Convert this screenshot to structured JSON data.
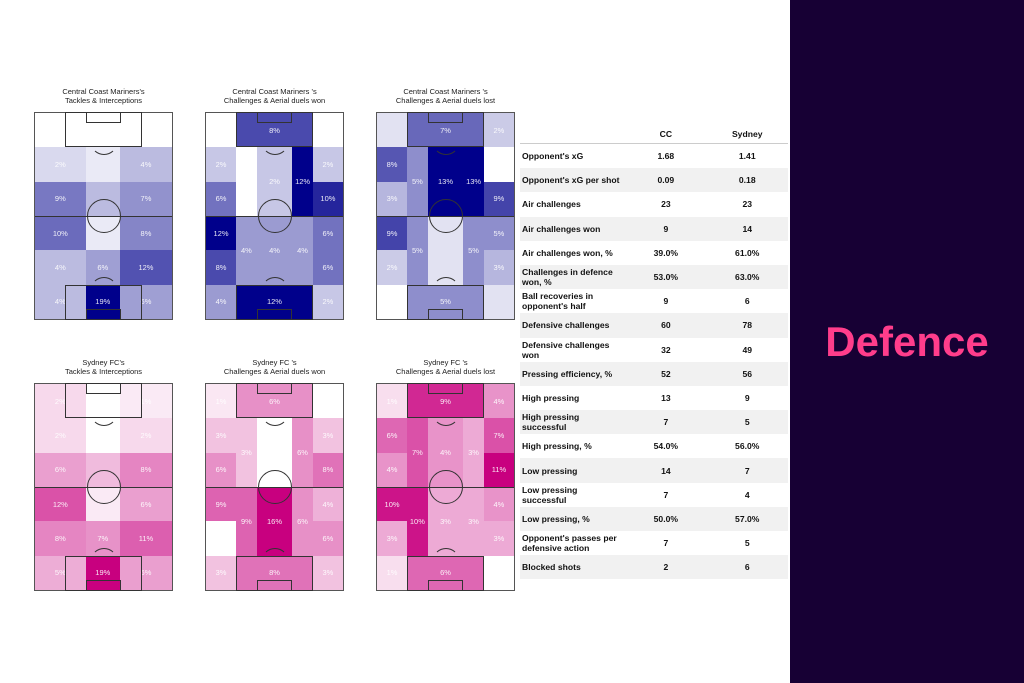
{
  "chart_data": [
    {
      "type": "heatmap",
      "team": "cc",
      "title": "Central Coast Mariners's\nTackles & Interceptions",
      "layout": "3col",
      "cells": [
        [
          0,
          2,
          0,
          1,
          0,
          "0%"
        ],
        [
          2,
          3,
          0,
          1,
          0,
          "0%"
        ],
        [
          3,
          5,
          0,
          1,
          0,
          "0%"
        ],
        [
          0,
          2,
          1,
          2,
          2,
          "2%"
        ],
        [
          2,
          3,
          1,
          2,
          1,
          ""
        ],
        [
          3,
          5,
          1,
          2,
          4,
          "4%"
        ],
        [
          0,
          2,
          2,
          3,
          9,
          "9%"
        ],
        [
          2,
          3,
          2,
          3,
          4,
          ""
        ],
        [
          3,
          5,
          2,
          3,
          7,
          "7%"
        ],
        [
          0,
          2,
          3,
          4,
          10,
          "10%"
        ],
        [
          2,
          3,
          3,
          4,
          1,
          ""
        ],
        [
          3,
          5,
          3,
          4,
          8,
          "8%"
        ],
        [
          0,
          2,
          4,
          5,
          4,
          "4%"
        ],
        [
          2,
          3,
          4,
          5,
          6,
          "6%"
        ],
        [
          3,
          5,
          4,
          5,
          12,
          "12%"
        ],
        [
          0,
          2,
          5,
          6,
          4,
          "4%"
        ],
        [
          2,
          3,
          5,
          6,
          19,
          "19%"
        ],
        [
          3,
          5,
          5,
          6,
          6,
          "6%"
        ]
      ]
    },
    {
      "type": "heatmap",
      "team": "cc",
      "title": "Central Coast Mariners 's\nChallenges & Aerial duels won",
      "layout": "5col",
      "cells": [
        [
          0,
          1,
          0,
          1,
          0,
          "0%"
        ],
        [
          1,
          4,
          0,
          1,
          8,
          "8%"
        ],
        [
          4,
          5,
          0,
          1,
          0,
          "0%"
        ],
        [
          0,
          1,
          1,
          2,
          2,
          "2%"
        ],
        [
          0,
          1,
          2,
          3,
          6,
          "6%"
        ],
        [
          1,
          2,
          1,
          3,
          0,
          "0%"
        ],
        [
          2,
          3,
          1,
          3,
          2,
          "2%"
        ],
        [
          3,
          4,
          1,
          3,
          12,
          "12%"
        ],
        [
          4,
          5,
          1,
          2,
          2,
          "2%"
        ],
        [
          4,
          5,
          2,
          3,
          10,
          "10%"
        ],
        [
          0,
          1,
          3,
          4,
          12,
          "12%"
        ],
        [
          0,
          1,
          4,
          5,
          8,
          "8%"
        ],
        [
          1,
          2,
          3,
          5,
          4,
          "4%"
        ],
        [
          2,
          3,
          3,
          5,
          4,
          "4%"
        ],
        [
          3,
          4,
          3,
          5,
          4,
          "4%"
        ],
        [
          4,
          5,
          3,
          4,
          6,
          "6%"
        ],
        [
          4,
          5,
          4,
          5,
          6,
          "6%"
        ],
        [
          0,
          1,
          5,
          6,
          4,
          "4%"
        ],
        [
          1,
          4,
          5,
          6,
          12,
          "12%"
        ],
        [
          4,
          5,
          5,
          6,
          2,
          "2%"
        ]
      ]
    },
    {
      "type": "heatmap",
      "team": "cc",
      "title": "Central Coast Mariners 's\nChallenges & Aerial duels lost",
      "layout": "5col",
      "cells": [
        [
          0,
          1,
          0,
          1,
          1,
          ""
        ],
        [
          1,
          4,
          0,
          1,
          7,
          "7%"
        ],
        [
          4,
          5,
          0,
          1,
          2,
          "2%"
        ],
        [
          0,
          1,
          1,
          2,
          8,
          "8%"
        ],
        [
          0,
          1,
          2,
          3,
          3,
          "3%"
        ],
        [
          1,
          2,
          1,
          3,
          5,
          "5%"
        ],
        [
          2,
          3,
          1,
          3,
          13,
          "13%"
        ],
        [
          3,
          4,
          1,
          3,
          13,
          "13%"
        ],
        [
          4,
          5,
          1,
          2,
          0,
          "0%"
        ],
        [
          4,
          5,
          2,
          3,
          9,
          "9%"
        ],
        [
          0,
          1,
          3,
          4,
          9,
          "9%"
        ],
        [
          0,
          1,
          4,
          5,
          2,
          "2%"
        ],
        [
          1,
          2,
          3,
          5,
          5,
          "5%"
        ],
        [
          2,
          3,
          3,
          5,
          1,
          ""
        ],
        [
          3,
          4,
          3,
          5,
          5,
          "5%"
        ],
        [
          4,
          5,
          3,
          4,
          5,
          "5%"
        ],
        [
          4,
          5,
          4,
          5,
          3,
          "3%"
        ],
        [
          0,
          1,
          5,
          6,
          0,
          "0%"
        ],
        [
          1,
          4,
          5,
          6,
          5,
          "5%"
        ],
        [
          4,
          5,
          5,
          6,
          1,
          ""
        ]
      ]
    },
    {
      "type": "heatmap",
      "team": "syd",
      "title": "Sydney FC's\nTackles & Interceptions",
      "layout": "3col",
      "cells": [
        [
          0,
          2,
          0,
          1,
          2,
          "2%"
        ],
        [
          2,
          3,
          0,
          1,
          0,
          "0%"
        ],
        [
          3,
          5,
          0,
          1,
          1,
          "1%"
        ],
        [
          0,
          2,
          1,
          2,
          2,
          "2%"
        ],
        [
          2,
          3,
          1,
          2,
          0,
          "0%"
        ],
        [
          3,
          5,
          1,
          2,
          2,
          "2%"
        ],
        [
          0,
          2,
          2,
          3,
          6,
          "6%"
        ],
        [
          2,
          3,
          2,
          3,
          4,
          ""
        ],
        [
          3,
          5,
          2,
          3,
          8,
          "8%"
        ],
        [
          0,
          2,
          3,
          4,
          12,
          "12%"
        ],
        [
          2,
          3,
          3,
          4,
          1,
          ""
        ],
        [
          3,
          5,
          3,
          4,
          6,
          "6%"
        ],
        [
          0,
          2,
          4,
          5,
          8,
          "8%"
        ],
        [
          2,
          3,
          4,
          5,
          7,
          "7%"
        ],
        [
          3,
          5,
          4,
          5,
          11,
          "11%"
        ],
        [
          0,
          2,
          5,
          6,
          5,
          "5%"
        ],
        [
          2,
          3,
          5,
          6,
          19,
          "19%"
        ],
        [
          3,
          5,
          5,
          6,
          6,
          "6%"
        ]
      ]
    },
    {
      "type": "heatmap",
      "team": "syd",
      "title": "Sydney FC 's\nChallenges & Aerial duels won",
      "layout": "5col",
      "cells": [
        [
          0,
          1,
          0,
          1,
          1,
          "1%"
        ],
        [
          1,
          4,
          0,
          1,
          6,
          "6%"
        ],
        [
          4,
          5,
          0,
          1,
          0,
          "0%"
        ],
        [
          0,
          1,
          1,
          2,
          3,
          "3%"
        ],
        [
          0,
          1,
          2,
          3,
          6,
          "6%"
        ],
        [
          1,
          2,
          1,
          3,
          3,
          "3%"
        ],
        [
          2,
          3,
          1,
          3,
          0,
          "0%"
        ],
        [
          3,
          4,
          1,
          3,
          6,
          "6%"
        ],
        [
          4,
          5,
          1,
          2,
          3,
          "3%"
        ],
        [
          4,
          5,
          2,
          3,
          8,
          "8%"
        ],
        [
          0,
          1,
          3,
          4,
          9,
          "9%"
        ],
        [
          0,
          1,
          4,
          5,
          0,
          "0%"
        ],
        [
          1,
          2,
          3,
          5,
          9,
          "9%"
        ],
        [
          2,
          3,
          3,
          5,
          16,
          "16%"
        ],
        [
          3,
          4,
          3,
          5,
          6,
          "6%"
        ],
        [
          4,
          5,
          3,
          4,
          4,
          "4%"
        ],
        [
          4,
          5,
          4,
          5,
          6,
          "6%"
        ],
        [
          0,
          1,
          5,
          6,
          3,
          "3%"
        ],
        [
          1,
          4,
          5,
          6,
          8,
          "8%"
        ],
        [
          4,
          5,
          5,
          6,
          3,
          "3%"
        ]
      ]
    },
    {
      "type": "heatmap",
      "team": "syd",
      "title": "Sydney FC 's\nChallenges & Aerial duels lost",
      "layout": "5col",
      "cells": [
        [
          0,
          1,
          0,
          1,
          1,
          "1%"
        ],
        [
          1,
          4,
          0,
          1,
          9,
          "9%"
        ],
        [
          4,
          5,
          0,
          1,
          4,
          "4%"
        ],
        [
          0,
          1,
          1,
          2,
          6,
          "6%"
        ],
        [
          0,
          1,
          2,
          3,
          4,
          "4%"
        ],
        [
          1,
          2,
          1,
          3,
          7,
          "7%"
        ],
        [
          2,
          3,
          1,
          3,
          4,
          "4%"
        ],
        [
          3,
          4,
          1,
          3,
          3,
          "3%"
        ],
        [
          4,
          5,
          1,
          2,
          7,
          "7%"
        ],
        [
          4,
          5,
          2,
          3,
          11,
          "11%"
        ],
        [
          0,
          1,
          3,
          4,
          10,
          "10%"
        ],
        [
          0,
          1,
          4,
          5,
          3,
          "3%"
        ],
        [
          1,
          2,
          3,
          5,
          10,
          "10%"
        ],
        [
          2,
          3,
          3,
          5,
          3,
          "3%"
        ],
        [
          3,
          4,
          3,
          5,
          3,
          "3%"
        ],
        [
          4,
          5,
          3,
          4,
          4,
          "4%"
        ],
        [
          4,
          5,
          4,
          5,
          3,
          "3%"
        ],
        [
          0,
          1,
          5,
          6,
          1,
          "1%"
        ],
        [
          1,
          4,
          5,
          6,
          6,
          "6%"
        ],
        [
          4,
          5,
          5,
          6,
          0,
          "0%"
        ]
      ]
    }
  ],
  "colors": {
    "cc": "#00008b",
    "syd": "#c8007f",
    "panel": "#170034",
    "accent": "#ff3d8b"
  },
  "table": {
    "headers": [
      "",
      "CC",
      "Sydney"
    ],
    "rows": [
      [
        "Opponent's xG",
        "1.68",
        "1.41"
      ],
      [
        "Opponent's xG per shot",
        "0.09",
        "0.18"
      ],
      [
        "Air challenges",
        "23",
        "23"
      ],
      [
        "Air challenges won",
        "9",
        "14"
      ],
      [
        "Air challenges won, %",
        "39.0%",
        "61.0%"
      ],
      [
        "Challenges in defence won, %",
        "53.0%",
        "63.0%"
      ],
      [
        "Ball recoveries in opponent's half",
        "9",
        "6"
      ],
      [
        "Defensive challenges",
        "60",
        "78"
      ],
      [
        "Defensive challenges won",
        "32",
        "49"
      ],
      [
        "Pressing efficiency, %",
        "52",
        "56"
      ],
      [
        "High pressing",
        "13",
        "9"
      ],
      [
        "High pressing successful",
        "7",
        "5"
      ],
      [
        "High pressing, %",
        "54.0%",
        "56.0%"
      ],
      [
        "Low pressing",
        "14",
        "7"
      ],
      [
        "Low pressing successful",
        "7",
        "4"
      ],
      [
        "Low pressing, %",
        "50.0%",
        "57.0%"
      ],
      [
        "Opponent's passes per defensive action",
        "7",
        "5"
      ],
      [
        "Blocked shots",
        "2",
        "6"
      ]
    ]
  },
  "panel": {
    "title": "Defence"
  }
}
